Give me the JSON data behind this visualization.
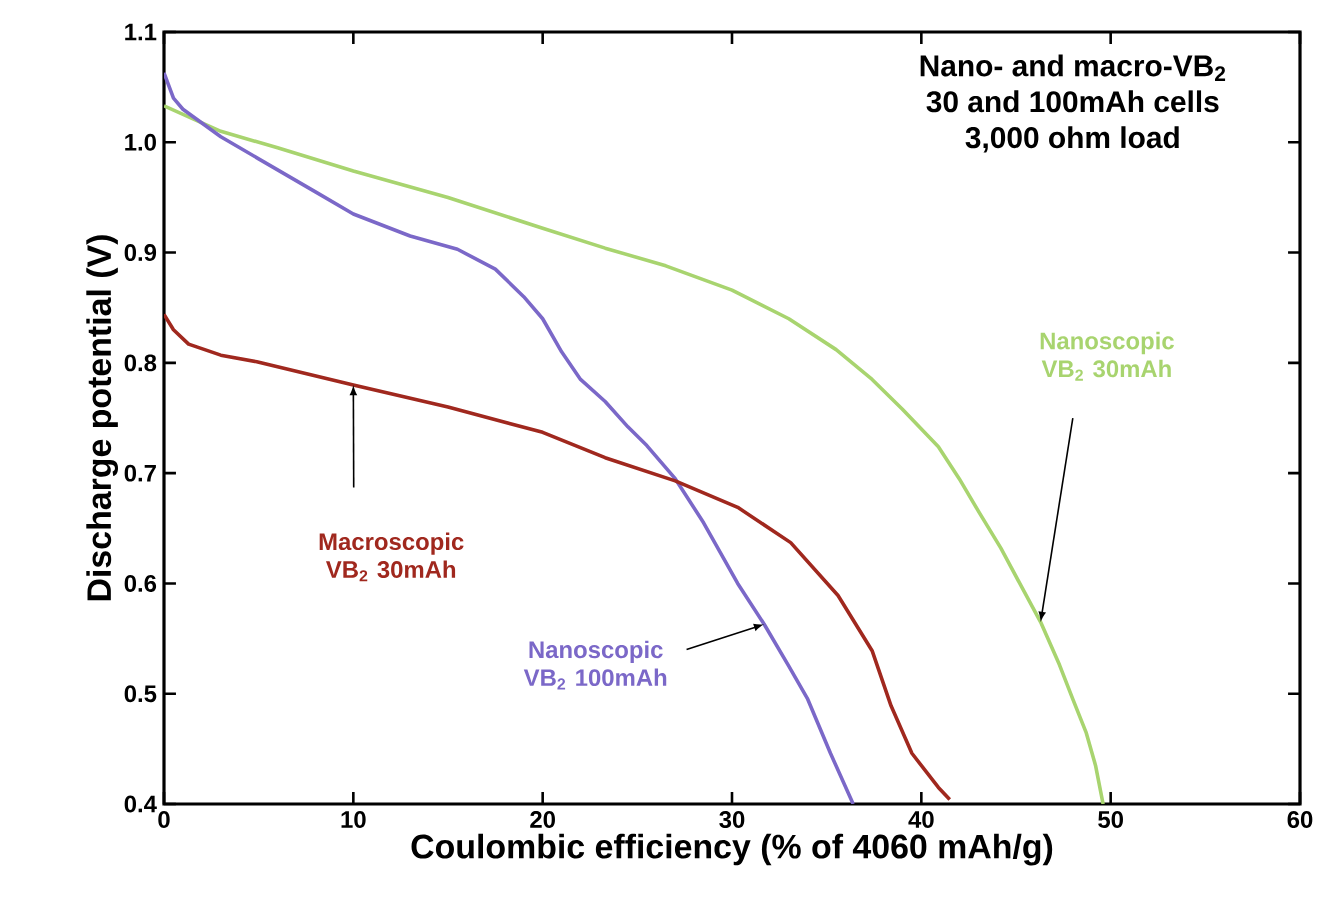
{
  "chart_data": {
    "type": "line",
    "xlabel": "Coulombic efficiency (% of 4060 mAh/g)",
    "ylabel": "Discharge potential (V)",
    "xlim": [
      0,
      60
    ],
    "ylim": [
      0.4,
      1.1
    ],
    "xticks": [
      0,
      10,
      20,
      30,
      40,
      50,
      60
    ],
    "yticks": [
      0.4,
      0.5,
      0.6,
      0.7,
      0.8,
      0.9,
      {
        "value": 1.0,
        "label": "1.0"
      },
      1.1
    ],
    "annotations": [
      "Nano- and macro-VB$_{2}$",
      "30 and 100mAh cells",
      "3,000 ohm load"
    ],
    "series": [
      {
        "name": "Nanoscopic VB$_{2}$ 30mAh",
        "color": "#a8d46f",
        "x": [
          0,
          3,
          6,
          10,
          15,
          20,
          23.3,
          26.5,
          30,
          33,
          35.5,
          37.4,
          39,
          40.9,
          42,
          43.1,
          44.2,
          45.2,
          46.3,
          47.3,
          48,
          48.7,
          49.2,
          49.6
        ],
        "values": [
          1.033,
          1.01,
          0.995,
          0.974,
          0.95,
          0.922,
          0.904,
          0.888,
          0.866,
          0.84,
          0.812,
          0.785,
          0.758,
          0.724,
          0.695,
          0.663,
          0.632,
          0.6,
          0.565,
          0.526,
          0.495,
          0.465,
          0.435,
          0.4
        ]
      },
      {
        "name": "Nanoscopic VB$_{2}$ 100mAh",
        "color": "#7b68c8",
        "x": [
          0,
          0.5,
          1,
          3,
          5,
          8,
          10,
          13,
          15.5,
          17.5,
          19,
          20,
          21,
          22,
          23.3,
          24.5,
          25.5,
          27,
          28.5,
          30.3,
          31.7,
          33,
          34,
          35.2,
          36.4
        ],
        "values": [
          1.063,
          1.04,
          1.03,
          1.005,
          0.985,
          0.955,
          0.935,
          0.915,
          0.903,
          0.885,
          0.86,
          0.84,
          0.81,
          0.785,
          0.765,
          0.742,
          0.725,
          0.695,
          0.655,
          0.6,
          0.563,
          0.525,
          0.495,
          0.446,
          0.4
        ]
      },
      {
        "name": "Macroscopic VB$_{2}$ 30mAh",
        "color": "#a0281e",
        "x": [
          0,
          0.5,
          1.3,
          3,
          4.9,
          10,
          15,
          20,
          23.3,
          27,
          30.3,
          33.1,
          35.6,
          37.4,
          38.4,
          39.5,
          40.9,
          41.5
        ],
        "values": [
          0.844,
          0.83,
          0.817,
          0.807,
          0.801,
          0.78,
          0.76,
          0.737,
          0.714,
          0.693,
          0.669,
          0.637,
          0.589,
          0.539,
          0.489,
          0.446,
          0.415,
          0.404
        ]
      }
    ]
  }
}
